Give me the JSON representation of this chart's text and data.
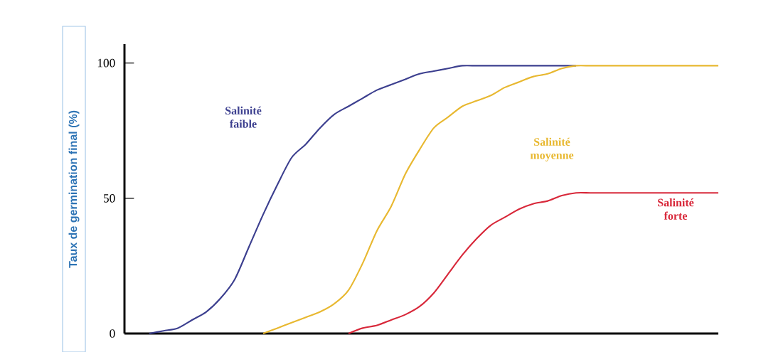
{
  "chart_data": {
    "type": "line",
    "ylabel": "Taux de germination final (%)",
    "categories": [
      null,
      null,
      null,
      null,
      null,
      null,
      null,
      null,
      null,
      null,
      null,
      null,
      null,
      null,
      null,
      null,
      null,
      null,
      null,
      null,
      null,
      null,
      null,
      null,
      null,
      null,
      null,
      null,
      null,
      null,
      null,
      null,
      null,
      null,
      null,
      null,
      null,
      null,
      null,
      null,
      null
    ],
    "series": [
      {
        "name": "Salinité faible",
        "color": "#3c3f8f",
        "values": [
          0,
          1,
          2,
          5,
          8,
          13,
          20,
          32,
          44,
          55,
          65,
          70,
          76,
          81,
          84,
          87,
          90,
          92,
          94,
          96,
          97,
          98,
          99,
          99,
          99,
          99,
          99,
          99,
          99,
          99,
          99,
          null,
          null,
          null,
          null,
          null,
          null,
          null,
          null,
          null,
          null
        ]
      },
      {
        "name": "Salinité moyenne",
        "color": "#e8b830",
        "values": [
          null,
          null,
          null,
          null,
          null,
          null,
          null,
          null,
          0,
          2,
          4,
          6,
          8,
          11,
          16,
          26,
          38,
          47,
          59,
          68,
          76,
          80,
          84,
          86,
          88,
          91,
          93,
          95,
          96,
          98,
          99,
          99,
          99,
          99,
          99,
          99,
          99,
          99,
          99,
          99,
          99
        ]
      },
      {
        "name": "Salinité forte",
        "color": "#d8283a",
        "values": [
          null,
          null,
          null,
          null,
          null,
          null,
          null,
          null,
          null,
          null,
          null,
          null,
          null,
          null,
          0,
          2,
          3,
          5,
          7,
          10,
          15,
          22,
          29,
          35,
          40,
          43,
          46,
          48,
          49,
          51,
          52,
          52,
          52,
          52,
          52,
          52,
          52,
          52,
          52,
          52,
          52
        ]
      }
    ],
    "ylim": [
      0,
      107
    ],
    "yticks": [
      0,
      50,
      100
    ],
    "grid": false,
    "legend": false,
    "marker": "none",
    "line_style": "solid"
  }
}
